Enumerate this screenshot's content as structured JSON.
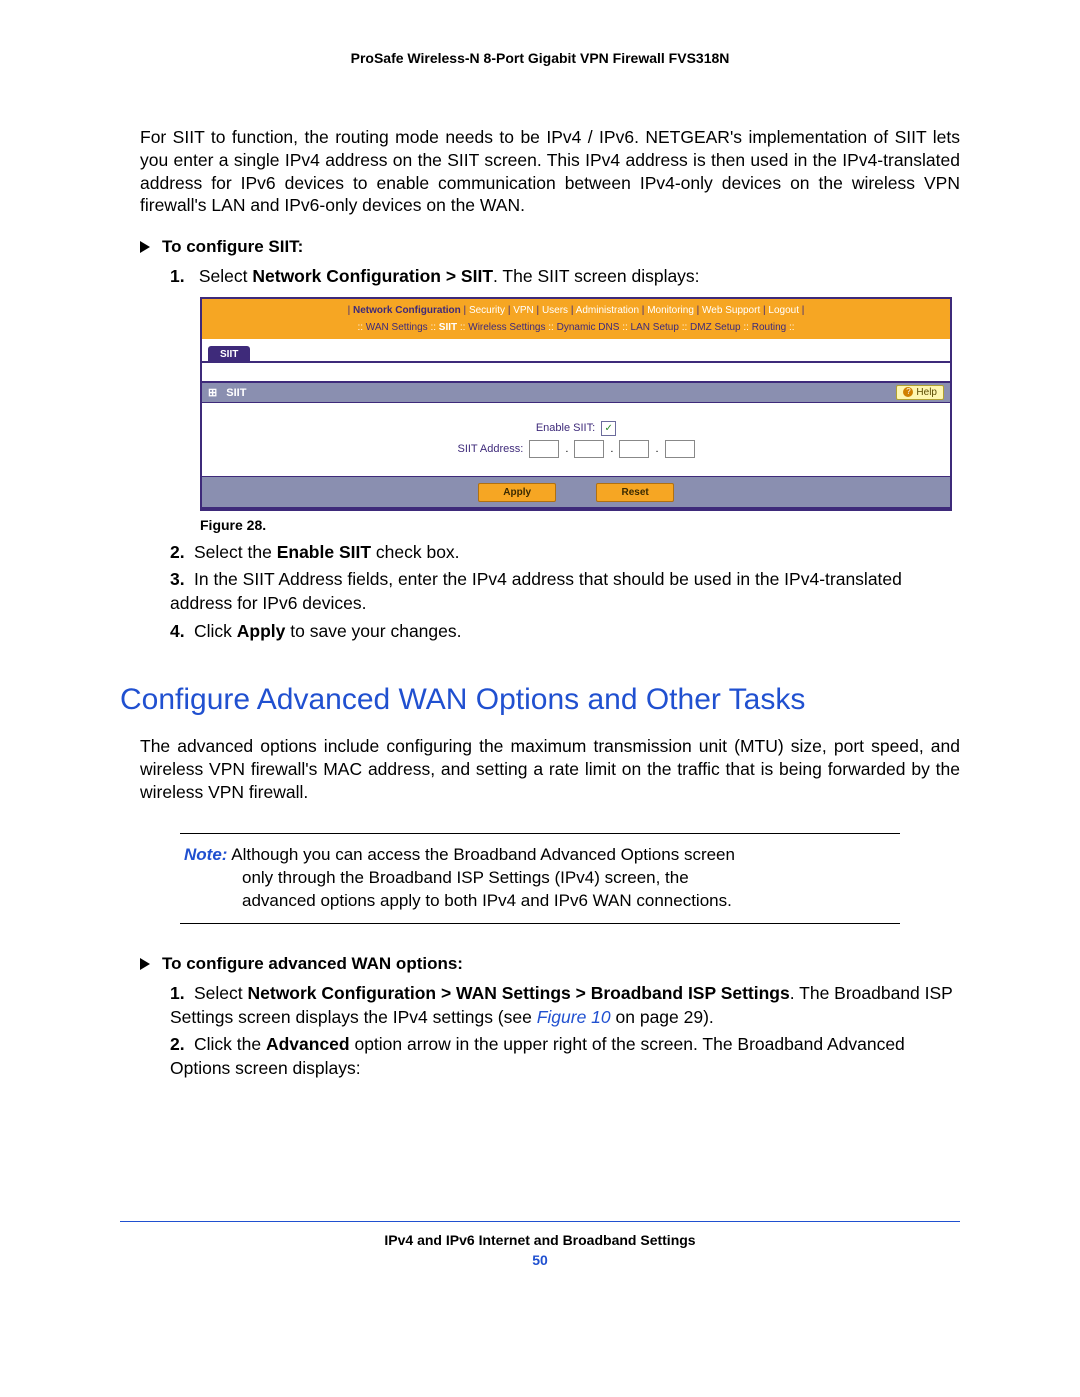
{
  "header": {
    "title": "ProSafe Wireless-N 8-Port Gigabit VPN Firewall FVS318N"
  },
  "intro_para": "For SIIT to function, the routing mode needs to be IPv4 / IPv6. NETGEAR's implementation of SIIT lets you enter a single IPv4 address on the SIIT screen. This IPv4 address is then used in the IPv4-translated address for IPv6 devices to enable communication between IPv4-only devices on the wireless VPN firewall's LAN and IPv6-only devices on the WAN.",
  "proc1": {
    "heading": "To configure SIIT:",
    "step1": {
      "num": "1.",
      "pre": "Select ",
      "bold": "Network Configuration > SIIT",
      "post": ". The SIIT screen displays:"
    }
  },
  "ui": {
    "top_nav": {
      "items": [
        "Network Configuration",
        "Security",
        "VPN",
        "Users",
        "Administration",
        "Monitoring",
        "Web Support",
        "Logout"
      ],
      "active_index": 0,
      "sep_open": "| ",
      "sep_mid": " | ",
      "sep_close": " |"
    },
    "sub_nav": {
      "items": [
        "WAN Settings",
        "SIIT",
        "Wireless Settings",
        "Dynamic DNS",
        "LAN Setup",
        "DMZ Setup",
        "Routing"
      ],
      "active_index": 1,
      "sep": " :: "
    },
    "tab_label": "SIIT",
    "panel_title": "SIIT",
    "panel_expand": "⊞",
    "help_label": "Help",
    "help_icon_char": "?",
    "enable_label": "Enable SIIT:",
    "enable_checked": true,
    "check_char": "✓",
    "addr_label": "SIIT Address:",
    "ip_octets": [
      "",
      "",
      "",
      ""
    ],
    "btn_apply": "Apply",
    "btn_reset": "Reset"
  },
  "figure_caption": "Figure 28.",
  "proc1_steps_after": [
    {
      "num": "2.",
      "pre": "Select the ",
      "bold": "Enable SIIT",
      "post": " check box."
    },
    {
      "num": "3.",
      "pre": "In the SIIT Address fields, enter the IPv4 address that should be used in the IPv4-translated address for IPv6 devices.",
      "bold": "",
      "post": ""
    },
    {
      "num": "4.",
      "pre": "Click ",
      "bold": "Apply",
      "post": " to save your changes."
    }
  ],
  "section_heading": {
    "text": "Configure Advanced WAN Options and Other Tasks",
    "color": "#2050d0"
  },
  "section_para": "The advanced options include configuring the maximum transmission unit (MTU) size, port speed, and wireless VPN firewall's MAC address, and setting a rate limit on the traffic that is being forwarded by the wireless VPN firewall.",
  "note": {
    "label": "Note:",
    "line1": "  Although you can access the Broadband Advanced Options screen",
    "line2": "only through the Broadband ISP Settings (IPv4) screen, the",
    "line3": "advanced options apply to both IPv4 and IPv6 WAN connections."
  },
  "proc2": {
    "heading": "To configure advanced WAN options:",
    "steps": [
      {
        "num": "1.",
        "pre": "Select ",
        "bold": "Network Configuration > WAN Settings > Broadband ISP Settings",
        "post1": ". The Broadband ISP Settings screen displays the IPv4 settings (see ",
        "link": "Figure 10",
        "post2": " on page 29)."
      },
      {
        "num": "2.",
        "pre": "Click the ",
        "bold": "Advanced",
        "post": " option arrow in the upper right of the screen. The Broadband Advanced Options screen displays:"
      }
    ]
  },
  "footer": {
    "text": "IPv4 and IPv6 Internet and Broadband Settings",
    "page": "50"
  }
}
